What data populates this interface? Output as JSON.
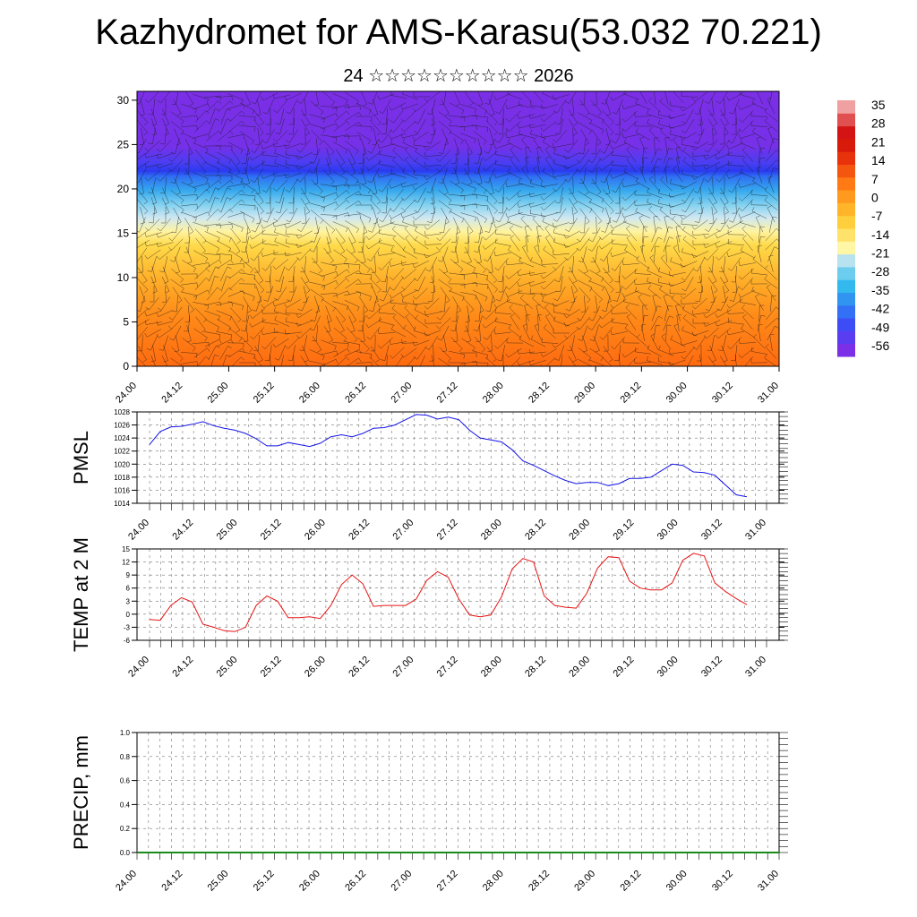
{
  "title": "Kazhydromet for AMS-Karasu(53.032 70.221)",
  "subtitle": "24 ☆☆☆☆☆☆☆☆☆☆ 2026",
  "colors": {
    "pmsl_line": "#1414e6",
    "temp_line": "#e61414",
    "colorbar": [
      "#7b2fe6",
      "#5a3df0",
      "#3d4cf5",
      "#3270f5",
      "#2f95f0",
      "#33b9ee",
      "#6dcdef",
      "#b8e2f0",
      "#fff6a6",
      "#ffe26a",
      "#ffce3c",
      "#ffb42a",
      "#ff9a1e",
      "#ff7a14",
      "#f5560f",
      "#e8320c",
      "#d81a0a",
      "#d41414",
      "#e05050",
      "#f0a0a0"
    ]
  },
  "chart_data": [
    {
      "type": "heatmap",
      "id": "cross-section",
      "xticks": [
        "24.00",
        "24.12",
        "25.00",
        "25.12",
        "26.00",
        "26.12",
        "27.00",
        "27.12",
        "28.00",
        "28.12",
        "29.00",
        "29.12",
        "30.00",
        "30.12",
        "31.00"
      ],
      "yticks": [
        "0",
        "5",
        "10",
        "15",
        "20",
        "25",
        "30"
      ],
      "ylim": [
        0,
        31
      ],
      "colorbar_labels": [
        "35",
        "28",
        "21",
        "14",
        "7",
        "0",
        "-7",
        "-14",
        "-21",
        "-28",
        "-35",
        "-42",
        "-49",
        "-56"
      ]
    },
    {
      "type": "line",
      "id": "pmsl",
      "ylabel": "PMSL",
      "ylim": [
        1014,
        1028
      ],
      "yticks": [
        "1028",
        "1026",
        "1024",
        "1022",
        "1020",
        "1018",
        "1016",
        "1014"
      ],
      "xticks": [
        "24.00",
        "24.12",
        "25.00",
        "25.12",
        "26.00",
        "26.12",
        "27.00",
        "27.12",
        "28.00",
        "28.12",
        "29.00",
        "29.12",
        "30.00",
        "30.12",
        "31.00"
      ],
      "values": [
        1023.0,
        1025.0,
        1025.7,
        1025.8,
        1026.1,
        1026.5,
        1025.9,
        1025.5,
        1025.2,
        1024.7,
        1023.9,
        1022.8,
        1022.8,
        1023.3,
        1023.0,
        1022.7,
        1023.2,
        1024.2,
        1024.5,
        1024.2,
        1024.7,
        1025.5,
        1025.6,
        1026.0,
        1026.8,
        1027.6,
        1027.5,
        1026.9,
        1027.2,
        1026.8,
        1025.2,
        1024.0,
        1023.7,
        1023.4,
        1022.2,
        1020.5,
        1019.8,
        1019.0,
        1018.2,
        1017.5,
        1017.0,
        1017.2,
        1017.2,
        1016.7,
        1017.0,
        1017.8,
        1017.8,
        1018.0,
        1019.0,
        1020.0,
        1019.8,
        1018.8,
        1018.7,
        1018.3,
        1016.8,
        1015.3,
        1015.0
      ]
    },
    {
      "type": "line",
      "id": "temp",
      "ylabel": "TEMP at 2 M",
      "ylim": [
        -6,
        15
      ],
      "yticks": [
        "15",
        "12",
        "9",
        "6",
        "3",
        "0",
        "-3",
        "-6"
      ],
      "xticks": [
        "24.00",
        "24.12",
        "25.00",
        "25.12",
        "26.00",
        "26.12",
        "27.00",
        "27.12",
        "28.00",
        "28.12",
        "29.00",
        "29.12",
        "30.00",
        "30.12",
        "31.00"
      ],
      "values": [
        -1.2,
        -1.4,
        2.0,
        3.8,
        2.8,
        -2.3,
        -3.0,
        -3.8,
        -4.0,
        -3.0,
        2.0,
        4.2,
        3.0,
        -0.8,
        -0.8,
        -0.6,
        -1.0,
        2.0,
        6.8,
        9.0,
        7.0,
        1.8,
        2.0,
        2.0,
        2.0,
        3.5,
        7.8,
        9.8,
        8.5,
        3.5,
        -0.2,
        -0.6,
        -0.2,
        4.0,
        10.4,
        12.8,
        12.0,
        4.2,
        2.0,
        1.6,
        1.4,
        4.8,
        10.6,
        13.2,
        13.0,
        7.6,
        6.0,
        5.6,
        5.6,
        7.2,
        12.4,
        14.0,
        13.4,
        7.2,
        5.2,
        3.6,
        2.2
      ]
    },
    {
      "type": "line",
      "id": "precip",
      "ylabel": "PRECIP, mm",
      "ylim": [
        0,
        1
      ],
      "yticks": [
        "1.0",
        "0.8",
        "0.6",
        "0.4",
        "0.2",
        "0.0"
      ],
      "xticks": [
        "24.00",
        "24.12",
        "25.00",
        "25.12",
        "26.00",
        "26.12",
        "27.00",
        "27.12",
        "28.00",
        "28.12",
        "29.00",
        "29.12",
        "30.00",
        "30.12",
        "31.00"
      ],
      "values": []
    }
  ]
}
